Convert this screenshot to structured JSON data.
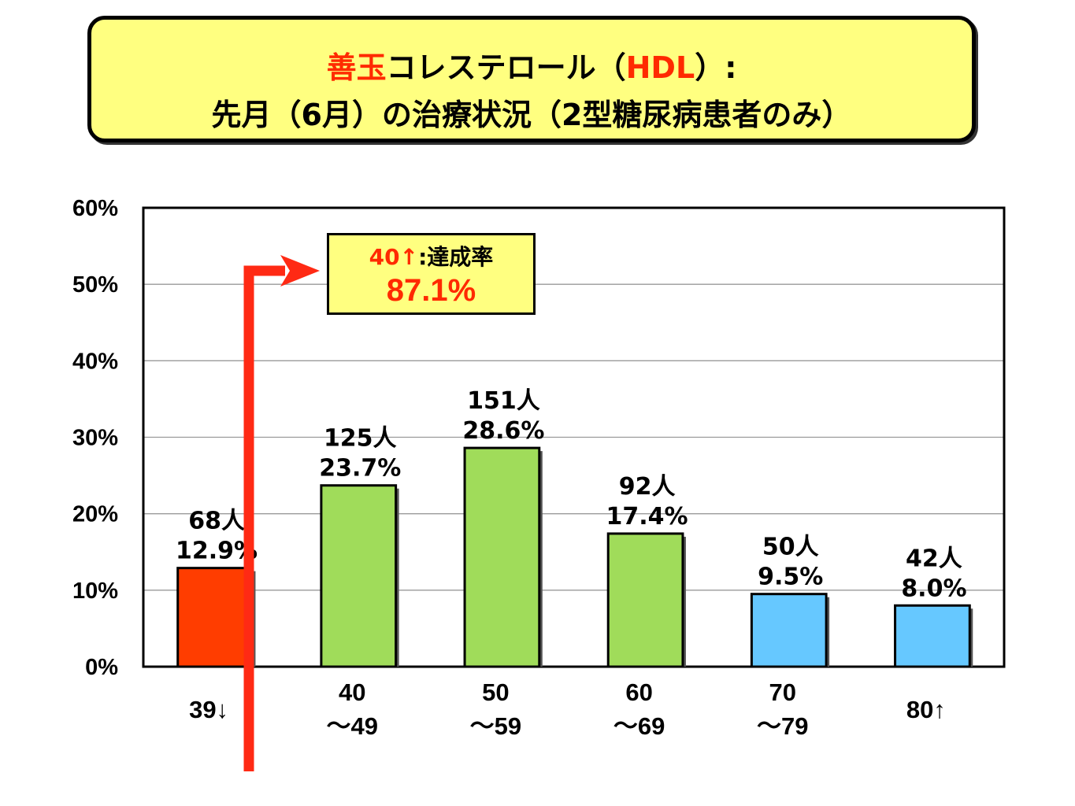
{
  "title": {
    "line1_highlight": "善玉",
    "line1_rest": "コレステロール（",
    "line1_hdl": "HDL",
    "line1_end": "）:",
    "line2": "先月（6月）の治療状況（2型糖尿病患者のみ）"
  },
  "callout": {
    "threshold": "40↑",
    "label": ":達成率",
    "value": "87.1%"
  },
  "colors": {
    "below": "#ff3d00",
    "mid": "#a0dc5a",
    "high": "#66c8ff",
    "arrow": "#ff2a14"
  },
  "chart_data": {
    "type": "bar",
    "categories": [
      [
        "39↓"
      ],
      [
        "40",
        "～49"
      ],
      [
        "50",
        "～59"
      ],
      [
        "60",
        "～69"
      ],
      [
        "70",
        "～79"
      ],
      [
        "80↑"
      ]
    ],
    "values": [
      12.9,
      23.7,
      28.6,
      17.4,
      9.5,
      8.0
    ],
    "counts": [
      "68人",
      "125人",
      "151人",
      "92人",
      "50人",
      "42人"
    ],
    "value_labels": [
      "12.9%",
      "23.7%",
      "28.6%",
      "17.4%",
      "9.5%",
      "8.0%"
    ],
    "bar_color_keys": [
      "below",
      "mid",
      "mid",
      "mid",
      "high",
      "high"
    ],
    "y_ticks": [
      "0%",
      "10%",
      "20%",
      "30%",
      "40%",
      "50%",
      "60%"
    ],
    "ylim": [
      0,
      60
    ],
    "grid": true,
    "xlabel": "",
    "ylabel": ""
  }
}
